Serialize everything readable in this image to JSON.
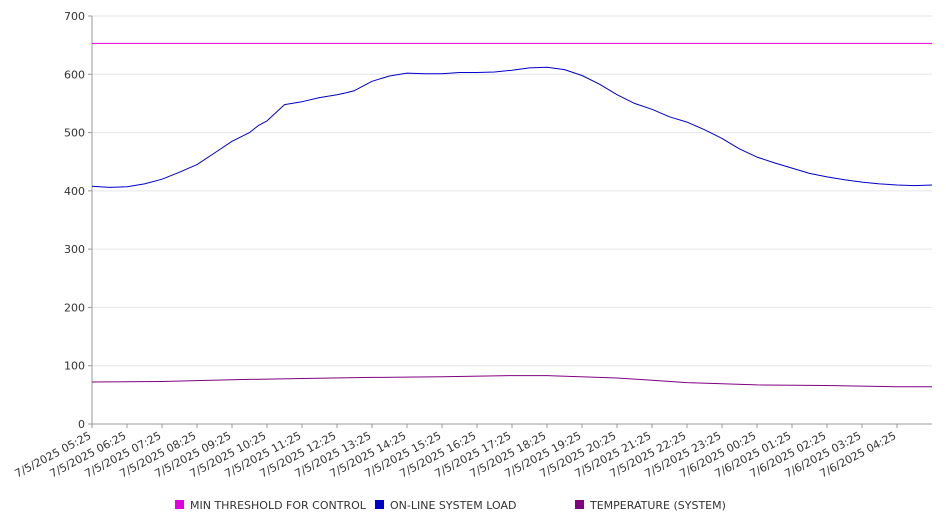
{
  "chart_data": {
    "type": "line",
    "title": "",
    "xlabel": "",
    "ylabel": "",
    "ylim": [
      0,
      700
    ],
    "y_ticks": [
      0,
      100,
      200,
      300,
      400,
      500,
      600,
      700
    ],
    "x_range": [
      "7/5/2025 05:25",
      "7/6/2025 05:25"
    ],
    "x_tick_labels": [
      "7/5/2025 05:25",
      "7/5/2025 06:25",
      "7/5/2025 07:25",
      "7/5/2025 08:25",
      "7/5/2025 09:25",
      "7/5/2025 10:25",
      "7/5/2025 11:25",
      "7/5/2025 12:25",
      "7/5/2025 13:25",
      "7/5/2025 14:25",
      "7/5/2025 15:25",
      "7/5/2025 16:25",
      "7/5/2025 17:25",
      "7/5/2025 18:25",
      "7/5/2025 19:25",
      "7/5/2025 20:25",
      "7/5/2025 21:25",
      "7/5/2025 22:25",
      "7/5/2025 23:25",
      "7/6/2025 00:25",
      "7/6/2025 01:25",
      "7/6/2025 02:25",
      "7/6/2025 03:25",
      "7/6/2025 04:25"
    ],
    "grid": "horizontal",
    "legend_position": "bottom",
    "series": [
      {
        "name": "MIN THRESHOLD FOR CONTROL",
        "color": "#e000e0",
        "x": [
          "7/5/2025 05:25",
          "7/6/2025 05:25"
        ],
        "y": [
          653,
          653
        ]
      },
      {
        "name": "ON-LINE SYSTEM LOAD",
        "color": "#0000cc",
        "x": [
          "7/5/2025 05:25",
          "7/5/2025 05:55",
          "7/5/2025 06:25",
          "7/5/2025 06:55",
          "7/5/2025 07:25",
          "7/5/2025 07:55",
          "7/5/2025 08:25",
          "7/5/2025 08:55",
          "7/5/2025 09:25",
          "7/5/2025 09:55",
          "7/5/2025 10:10",
          "7/5/2025 10:25",
          "7/5/2025 10:55",
          "7/5/2025 11:25",
          "7/5/2025 11:55",
          "7/5/2025 12:25",
          "7/5/2025 12:40",
          "7/5/2025 12:55",
          "7/5/2025 13:25",
          "7/5/2025 13:55",
          "7/5/2025 14:25",
          "7/5/2025 14:55",
          "7/5/2025 15:25",
          "7/5/2025 15:55",
          "7/5/2025 16:25",
          "7/5/2025 16:55",
          "7/5/2025 17:25",
          "7/5/2025 17:55",
          "7/5/2025 18:25",
          "7/5/2025 18:55",
          "7/5/2025 19:25",
          "7/5/2025 19:55",
          "7/5/2025 20:25",
          "7/5/2025 20:55",
          "7/5/2025 21:25",
          "7/5/2025 21:55",
          "7/5/2025 22:25",
          "7/5/2025 22:55",
          "7/5/2025 23:25",
          "7/5/2025 23:55",
          "7/6/2025 00:25",
          "7/6/2025 00:55",
          "7/6/2025 01:25",
          "7/6/2025 01:55",
          "7/6/2025 02:25",
          "7/6/2025 02:55",
          "7/6/2025 03:25",
          "7/6/2025 03:55",
          "7/6/2025 04:25",
          "7/6/2025 04:55",
          "7/6/2025 05:25"
        ],
        "y": [
          408,
          406,
          407,
          412,
          420,
          432,
          445,
          465,
          485,
          500,
          512,
          520,
          548,
          553,
          560,
          565,
          568,
          572,
          588,
          597,
          602,
          601,
          601,
          603,
          603,
          604,
          607,
          611,
          612,
          608,
          598,
          583,
          565,
          550,
          540,
          527,
          518,
          505,
          490,
          472,
          458,
          448,
          439,
          430,
          424,
          419,
          415,
          412,
          410,
          409,
          410
        ]
      },
      {
        "name": "TEMPERATURE (SYSTEM)",
        "color": "#800080",
        "x": [
          "7/5/2025 05:25",
          "7/5/2025 07:25",
          "7/5/2025 09:25",
          "7/5/2025 11:25",
          "7/5/2025 13:25",
          "7/5/2025 15:25",
          "7/5/2025 17:25",
          "7/5/2025 18:25",
          "7/5/2025 20:25",
          "7/5/2025 22:25",
          "7/6/2025 00:25",
          "7/6/2025 02:25",
          "7/6/2025 04:25",
          "7/6/2025 05:25"
        ],
        "y": [
          72,
          73,
          76,
          78,
          80,
          81,
          83,
          83,
          79,
          71,
          67,
          66,
          64,
          64
        ]
      }
    ]
  }
}
